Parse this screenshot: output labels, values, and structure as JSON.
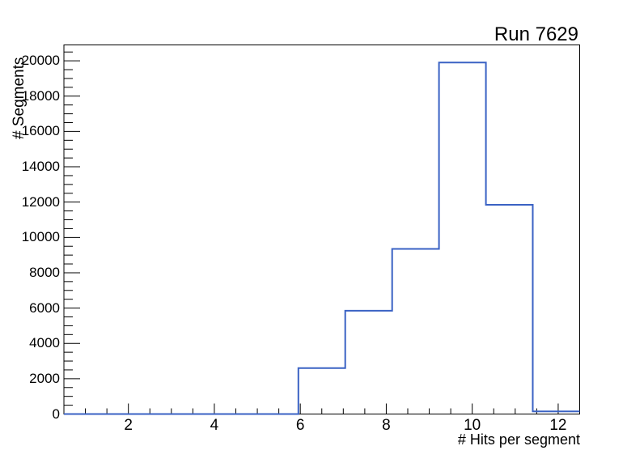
{
  "chart_data": {
    "type": "histogram-step",
    "title": "Run 7629",
    "xlabel": "# Hits per segment",
    "ylabel": "# Segments",
    "xlim": [
      0.5,
      12.5
    ],
    "ylim": [
      0,
      20900
    ],
    "x_tick_values": [
      2,
      4,
      6,
      8,
      10,
      12
    ],
    "x_tick_labels": [
      "2",
      "4",
      "6",
      "8",
      "10",
      "12"
    ],
    "x_minor_step": 0.5,
    "y_tick_values": [
      0,
      2000,
      4000,
      6000,
      8000,
      10000,
      12000,
      14000,
      16000,
      18000,
      20000
    ],
    "y_tick_labels": [
      "0",
      "2000",
      "4000",
      "6000",
      "8000",
      "10000",
      "12000",
      "14000",
      "16000",
      "18000",
      "20000"
    ],
    "y_minor_step": 500,
    "bin_edges": [
      0.5,
      1.591,
      2.682,
      3.773,
      4.864,
      5.955,
      7.045,
      8.136,
      9.227,
      10.318,
      11.409,
      12.5
    ],
    "counts": [
      0,
      0,
      0,
      0,
      0,
      2600,
      5850,
      9350,
      19900,
      11850,
      150
    ],
    "line_color": "#3a62c4",
    "axis_color": "#000000",
    "background": "#ffffff",
    "grid": false,
    "legend": null
  }
}
